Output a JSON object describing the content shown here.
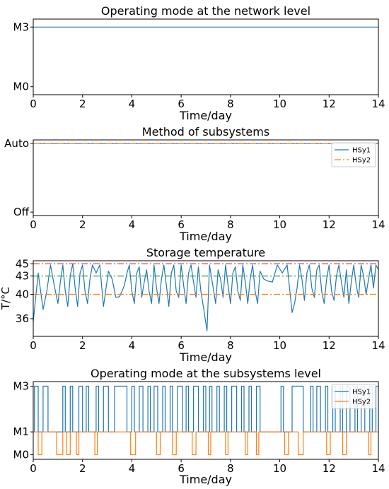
{
  "chart_data": [
    {
      "type": "line",
      "title": "Operating mode at the network level",
      "xlabel": "Time/day",
      "ylabel": "",
      "xlim": [
        0,
        14
      ],
      "ylim": [
        -0.4,
        3.4
      ],
      "xticks": [
        0,
        2,
        4,
        6,
        8,
        10,
        12,
        14
      ],
      "yticks": [
        {
          "v": 0,
          "label": "M0"
        },
        {
          "v": 3,
          "label": "M3"
        }
      ],
      "grid": false,
      "legend": null,
      "series": [
        {
          "color": "#1f77b4",
          "style": "solid",
          "x": [
            0,
            14
          ],
          "y": [
            3,
            3
          ]
        }
      ],
      "refs": []
    },
    {
      "type": "line",
      "title": "Method of subsystems",
      "xlabel": "Time/day",
      "ylabel": "",
      "xlim": [
        0,
        14
      ],
      "ylim": [
        -0.05,
        1.05
      ],
      "xticks": [
        0,
        2,
        4,
        6,
        8,
        10,
        12,
        14
      ],
      "yticks": [
        {
          "v": 0,
          "label": "Off"
        },
        {
          "v": 1,
          "label": "Auto"
        }
      ],
      "grid": false,
      "legend": "top-right",
      "series": [
        {
          "name": "HSy1",
          "color": "#1f77b4",
          "style": "solid",
          "x": [
            0,
            14
          ],
          "y": [
            1,
            1
          ]
        },
        {
          "name": "HSy2",
          "color": "#ff7f0e",
          "style": "dashdot",
          "x": [
            0,
            14
          ],
          "y": [
            1,
            1
          ]
        }
      ],
      "refs": []
    },
    {
      "type": "line",
      "title": "Storage temperature",
      "xlabel": "Time/day",
      "ylabel": "T/°C",
      "xlim": [
        0,
        14
      ],
      "ylim": [
        33.1,
        45.5
      ],
      "xticks": [
        0,
        2,
        4,
        6,
        8,
        10,
        12,
        14
      ],
      "yticks": [
        {
          "v": 36,
          "label": "36"
        },
        {
          "v": 40,
          "label": "40"
        },
        {
          "v": 43,
          "label": "43"
        },
        {
          "v": 45,
          "label": "45"
        }
      ],
      "grid": false,
      "legend": null,
      "series": [
        {
          "color": "#1f77b4",
          "style": "solid",
          "x": [
            0,
            0.1,
            0.2,
            0.4,
            0.55,
            0.7,
            0.85,
            1.0,
            1.1,
            1.2,
            1.3,
            1.4,
            1.5,
            1.6,
            1.7,
            1.8,
            1.9,
            2.0,
            2.1,
            2.2,
            2.3,
            2.4,
            2.55,
            2.7,
            2.85,
            3.05,
            3.2,
            3.35,
            3.5,
            3.6,
            3.7,
            3.8,
            3.9,
            4.0,
            4.1,
            4.2,
            4.3,
            4.4,
            4.5,
            4.6,
            4.7,
            4.8,
            4.9,
            5.0,
            5.1,
            5.2,
            5.3,
            5.4,
            5.5,
            5.6,
            5.7,
            5.8,
            5.9,
            6.0,
            6.1,
            6.2,
            6.3,
            6.4,
            6.5,
            6.6,
            6.7,
            6.8,
            6.9,
            7.05,
            7.15,
            7.3,
            7.4,
            7.5,
            7.6,
            7.7,
            7.8,
            7.9,
            8.0,
            8.1,
            8.2,
            8.3,
            8.4,
            8.5,
            8.6,
            8.7,
            8.8,
            8.9,
            9.0,
            9.1,
            9.2,
            9.35,
            9.5,
            9.7,
            9.9,
            10.1,
            10.3,
            10.5,
            10.6,
            10.7,
            10.8,
            10.9,
            11.0,
            11.1,
            11.2,
            11.3,
            11.4,
            11.5,
            11.6,
            11.7,
            11.8,
            11.9,
            12.0,
            12.1,
            12.2,
            12.3,
            12.4,
            12.5,
            12.6,
            12.7,
            12.8,
            12.9,
            13.0,
            13.1,
            13.2,
            13.3,
            13.4,
            13.5,
            13.6,
            13.7,
            13.8,
            13.9,
            14.0
          ],
          "y": [
            35.5,
            39.5,
            43.5,
            37.5,
            40.5,
            44.8,
            41.5,
            38.5,
            42.0,
            44.8,
            40.5,
            38.0,
            43.0,
            45.0,
            41.0,
            38.0,
            43.5,
            44.8,
            40.5,
            38.5,
            42.5,
            44.8,
            43.5,
            44.8,
            38.0,
            43.8,
            42.5,
            39.5,
            39.6,
            40.5,
            41.5,
            43.5,
            44.8,
            40.5,
            38.5,
            43.5,
            44.5,
            39.5,
            42.0,
            44.0,
            40.5,
            38.5,
            44.8,
            41.0,
            38.5,
            42.5,
            44.8,
            41.5,
            38.0,
            43.5,
            44.8,
            40.5,
            39.5,
            44.8,
            41.5,
            38.5,
            43.5,
            44.8,
            42.0,
            39.5,
            44.5,
            40.5,
            38.0,
            34.0,
            44.8,
            41.0,
            38.5,
            44.0,
            42.5,
            39.5,
            44.8,
            41.5,
            38.5,
            43.5,
            44.5,
            40.5,
            39.0,
            44.8,
            42.0,
            38.5,
            42.5,
            44.8,
            40.5,
            38.5,
            43.8,
            42.5,
            42.2,
            42.0,
            44.8,
            43.5,
            44.8,
            37.0,
            38.5,
            41.0,
            44.8,
            42.5,
            39.0,
            43.5,
            44.8,
            41.0,
            39.5,
            44.0,
            44.8,
            40.5,
            38.5,
            42.5,
            44.8,
            40.5,
            39.0,
            43.0,
            44.8,
            42.0,
            39.5,
            44.0,
            38.5,
            42.0,
            44.8,
            41.5,
            39.5,
            44.8,
            43.0,
            40.0,
            42.5,
            44.8,
            41.0,
            44.8,
            44.0
          ]
        },
        {
          "color": "#d62728",
          "style": "dashdot",
          "x": [
            0,
            14
          ],
          "y": [
            45,
            45
          ]
        },
        {
          "color": "#2ca02c",
          "style": "dashdot",
          "x": [
            0,
            14
          ],
          "y": [
            43,
            43
          ]
        },
        {
          "color": "#ff7f0e",
          "style": "dashdot",
          "x": [
            0,
            14
          ],
          "y": [
            40,
            40
          ]
        }
      ],
      "refs": []
    },
    {
      "type": "line",
      "title": "Operating mode at the subsystems level",
      "xlabel": "Time/day",
      "ylabel": "",
      "xlim": [
        0,
        14
      ],
      "ylim": [
        -0.2,
        3.2
      ],
      "xticks": [
        0,
        2,
        4,
        6,
        8,
        10,
        12,
        14
      ],
      "yticks": [
        {
          "v": 0,
          "label": "M0"
        },
        {
          "v": 1,
          "label": "M1"
        },
        {
          "v": 3,
          "label": "M3"
        }
      ],
      "grid": false,
      "legend": "top-right",
      "series": [
        {
          "name": "HSy1",
          "color": "#1f77b4",
          "style": "step",
          "intervals": [
            [
              0.05,
              0.2
            ],
            [
              0.4,
              0.6
            ],
            [
              1.2,
              1.3
            ],
            [
              1.5,
              1.6
            ],
            [
              1.85,
              2.0
            ],
            [
              2.15,
              2.25
            ],
            [
              2.55,
              2.65
            ],
            [
              2.85,
              3.05
            ],
            [
              3.3,
              3.8
            ],
            [
              4.0,
              4.1
            ],
            [
              4.3,
              4.45
            ],
            [
              4.65,
              4.75
            ],
            [
              4.9,
              5.05
            ],
            [
              5.25,
              5.35
            ],
            [
              5.55,
              5.65
            ],
            [
              5.85,
              6.05
            ],
            [
              6.2,
              6.3
            ],
            [
              6.5,
              6.7
            ],
            [
              6.9,
              7.0
            ],
            [
              7.15,
              7.25
            ],
            [
              7.45,
              7.55
            ],
            [
              7.75,
              7.85
            ],
            [
              8.05,
              8.25
            ],
            [
              8.45,
              8.55
            ],
            [
              8.75,
              8.85
            ],
            [
              9.05,
              9.2
            ],
            [
              10.05,
              10.15
            ],
            [
              10.5,
              10.95
            ],
            [
              11.25,
              11.35
            ],
            [
              11.5,
              11.65
            ],
            [
              11.85,
              11.95
            ],
            [
              12.15,
              12.25
            ],
            [
              12.45,
              12.55
            ],
            [
              12.7,
              12.85
            ],
            [
              13.05,
              13.15
            ],
            [
              13.3,
              13.45
            ],
            [
              13.65,
              13.75
            ],
            [
              13.9,
              14.0
            ]
          ]
        },
        {
          "name": "HSy2",
          "color": "#ff7f0e",
          "style": "step",
          "intervals": [
            [
              0.2,
              0.35
            ],
            [
              0.95,
              1.2
            ],
            [
              1.35,
              1.5
            ],
            [
              1.75,
              1.85
            ],
            [
              2.5,
              2.6
            ],
            [
              3.95,
              4.15
            ],
            [
              5.0,
              5.15
            ],
            [
              5.65,
              5.8
            ],
            [
              6.45,
              6.6
            ],
            [
              7.1,
              7.2
            ],
            [
              7.8,
              7.9
            ],
            [
              8.6,
              8.7
            ],
            [
              9.05,
              9.15
            ],
            [
              10.2,
              10.35
            ],
            [
              10.75,
              10.95
            ],
            [
              11.9,
              12.05
            ],
            [
              12.55,
              12.7
            ],
            [
              13.6,
              13.7
            ]
          ]
        }
      ],
      "refs": []
    }
  ]
}
